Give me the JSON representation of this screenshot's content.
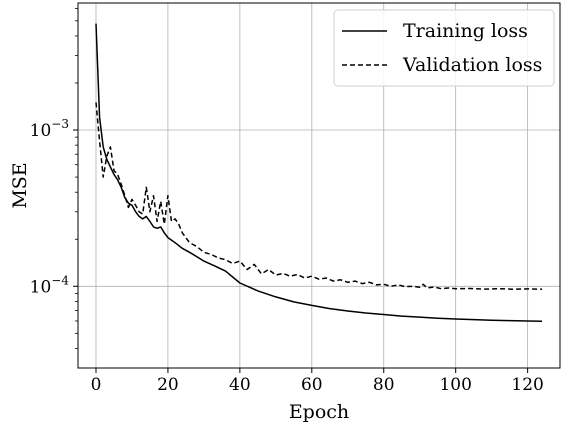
{
  "chart_data": {
    "type": "line",
    "title": "",
    "xlabel": "Epoch",
    "ylabel": "MSE",
    "xlim": [
      -5,
      129
    ],
    "ylim": [
      3e-05,
      0.0065
    ],
    "yscale": "log",
    "grid": true,
    "legend_position": "top-right",
    "x_ticks": [
      0,
      20,
      40,
      60,
      80,
      100,
      120
    ],
    "x_tick_labels": [
      "0",
      "20",
      "40",
      "60",
      "80",
      "100",
      "120"
    ],
    "y_ticks": [
      0.001,
      0.0001
    ],
    "y_tick_labels": [
      {
        "base": "10",
        "exp": "−3"
      },
      {
        "base": "10",
        "exp": "−4"
      }
    ],
    "series": [
      {
        "name": "Training loss",
        "style": "solid",
        "color": "#000000",
        "x": [
          0,
          1,
          2,
          3,
          4,
          5,
          6,
          7,
          8,
          9,
          10,
          11,
          12,
          13,
          14,
          15,
          16,
          17,
          18,
          19,
          20,
          22,
          24,
          26,
          28,
          30,
          33,
          36,
          40,
          45,
          50,
          55,
          60,
          65,
          70,
          75,
          80,
          85,
          90,
          95,
          100,
          105,
          110,
          115,
          120,
          124
        ],
        "y": [
          0.0048,
          0.0012,
          0.00078,
          0.00065,
          0.00058,
          0.00052,
          0.00048,
          0.00043,
          0.00037,
          0.00034,
          0.00033,
          0.0003,
          0.00028,
          0.00027,
          0.00028,
          0.00026,
          0.00024,
          0.000235,
          0.00024,
          0.00022,
          0.000205,
          0.00019,
          0.000175,
          0.000165,
          0.000155,
          0.000145,
          0.000135,
          0.000125,
          0.000105,
          9.35e-05,
          8.55e-05,
          7.95e-05,
          7.55e-05,
          7.2e-05,
          6.95e-05,
          6.75e-05,
          6.6e-05,
          6.45e-05,
          6.35e-05,
          6.25e-05,
          6.18e-05,
          6.12e-05,
          6.07e-05,
          6.03e-05,
          6e-05,
          5.98e-05
        ]
      },
      {
        "name": "Validation loss",
        "style": "dashed",
        "color": "#000000",
        "x": [
          0,
          1,
          2,
          3,
          4,
          5,
          6,
          7,
          8,
          9,
          10,
          11,
          12,
          13,
          14,
          15,
          16,
          17,
          18,
          19,
          20,
          21,
          22,
          23,
          24,
          26,
          28,
          30,
          32,
          34,
          36,
          38,
          40,
          42,
          44,
          46,
          48,
          50,
          52,
          54,
          56,
          58,
          60,
          62,
          64,
          66,
          68,
          70,
          72,
          74,
          76,
          78,
          80,
          82,
          84,
          86,
          88,
          90,
          91,
          92,
          94,
          96,
          98,
          100,
          104,
          108,
          112,
          116,
          120,
          124
        ],
        "y": [
          0.0015,
          0.00085,
          0.0005,
          0.00068,
          0.00078,
          0.00055,
          0.00052,
          0.00045,
          0.00038,
          0.00032,
          0.00036,
          0.00033,
          0.0003,
          0.00029,
          0.00043,
          0.0003,
          0.00038,
          0.00026,
          0.00035,
          0.00025,
          0.00038,
          0.00026,
          0.00027,
          0.00025,
          0.00022,
          0.00019,
          0.00018,
          0.000165,
          0.00016,
          0.000152,
          0.000148,
          0.00014,
          0.000145,
          0.000128,
          0.000138,
          0.00012,
          0.000128,
          0.000118,
          0.000121,
          0.000116,
          0.000119,
          0.000113,
          0.000116,
          0.000111,
          0.000113,
          0.000108,
          0.00011,
          0.000106,
          0.000108,
          0.000104,
          0.000106,
          0.000102,
          0.000103,
          0.0001,
          0.000102,
          9.95e-05,
          0.0001,
          9.85e-05,
          0.000103,
          9.75e-05,
          9.9e-05,
          9.65e-05,
          9.75e-05,
          9.65e-05,
          9.68e-05,
          9.6e-05,
          9.65e-05,
          9.58e-05,
          9.62e-05,
          9.58e-05
        ]
      }
    ]
  }
}
